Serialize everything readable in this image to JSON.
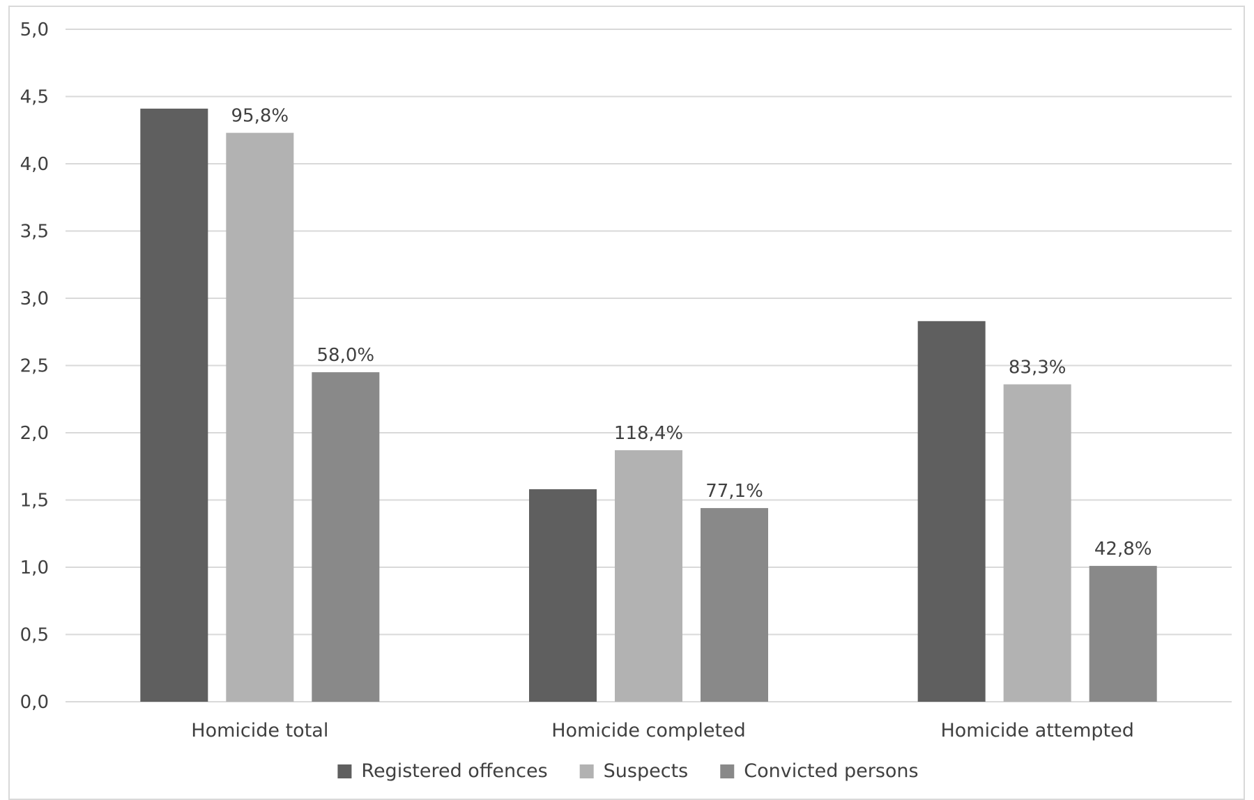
{
  "chart_data": {
    "type": "bar",
    "title": "",
    "xlabel": "",
    "ylabel": "",
    "ylim": [
      0,
      5
    ],
    "yticks": [
      "0,0",
      "0,5",
      "1,0",
      "1,5",
      "2,0",
      "2,5",
      "3,0",
      "3,5",
      "4,0",
      "4,5",
      "5,0"
    ],
    "grid": true,
    "legend_position": "bottom",
    "categories": [
      "Homicide total",
      "Homicide completed",
      "Homicide attempted"
    ],
    "series": [
      {
        "name": "Registered offences",
        "color": "#5f5f5f",
        "values": [
          4.41,
          1.58,
          2.83
        ],
        "labels": [
          "",
          "",
          ""
        ]
      },
      {
        "name": "Suspects",
        "color": "#b2b2b2",
        "values": [
          4.23,
          1.87,
          2.36
        ],
        "labels": [
          "95,8%",
          "118,4%",
          "83,3%"
        ]
      },
      {
        "name": "Convicted persons",
        "color": "#898989",
        "values": [
          2.45,
          1.44,
          1.01
        ],
        "labels": [
          "58,0%",
          "77,1%",
          "42,8%"
        ]
      }
    ],
    "colors": {
      "grid": "#d9d9d9",
      "text": "#404040",
      "frame": "#d9d9d9"
    }
  }
}
